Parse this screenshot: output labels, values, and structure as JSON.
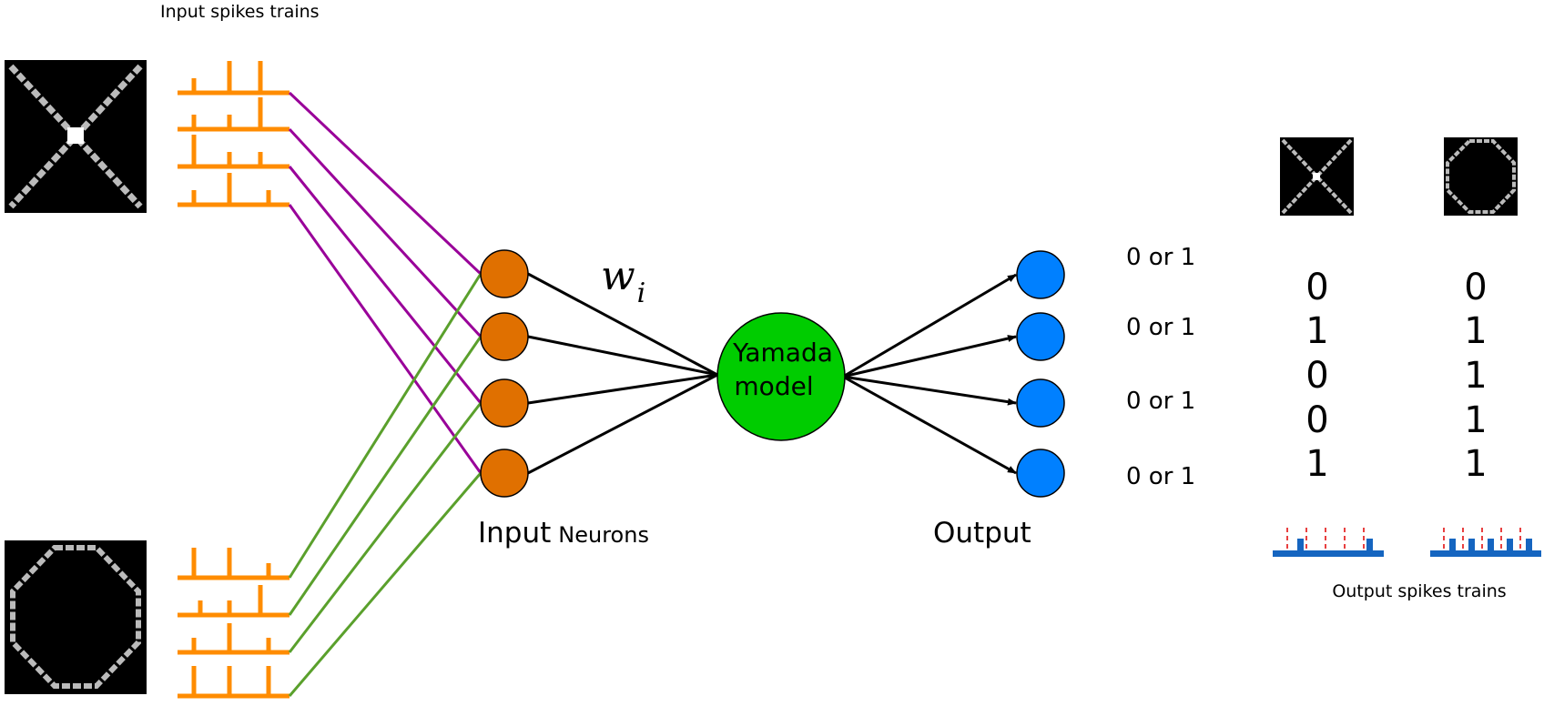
{
  "labels": {
    "input_spikes": "Input spikes trains",
    "input_neurons_main": "Input",
    "input_neurons_small": "Neurons",
    "weight_symbol": "w",
    "weight_subscript": "i",
    "model_line1": "Yamada",
    "model_line2": "model",
    "output": "Output",
    "output_spikes": "Output spikes trains"
  },
  "output_values": [
    "0 or 1",
    "0 or 1",
    "0 or 1",
    "0 or 1"
  ],
  "patterns": {
    "x_pattern": {
      "icon": "x-pattern-icon",
      "code": [
        "0",
        "1",
        "0",
        "0",
        "1"
      ]
    },
    "circle_pattern": {
      "icon": "circle-pattern-icon",
      "code": [
        "0",
        "1",
        "1",
        "1",
        "1"
      ]
    }
  },
  "colors": {
    "spike_orange": "#ff8c00",
    "neuron_orange": "#e07000",
    "x_pattern_lines": "#990099",
    "circle_pattern_lines": "#5aa02c",
    "yamada_green": "#00cc00",
    "output_blue": "#0080ff",
    "output_spike_blue": "#1565c0",
    "marker_red": "#e00000"
  }
}
